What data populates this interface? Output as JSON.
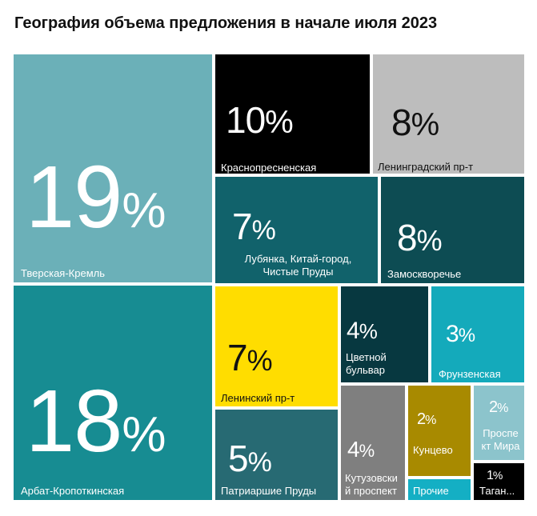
{
  "title": "География объема предложения в начале июля 2023",
  "chart_data": {
    "type": "treemap",
    "title": "География объема предложения в начале июля 2023",
    "unit": "%",
    "items": [
      {
        "name": "Тверская-Кремль",
        "value": 19,
        "color": "#6BB0B8"
      },
      {
        "name": "Арбат-Кропоткинская",
        "value": 18,
        "color": "#178C92"
      },
      {
        "name": "Краснопресненская",
        "value": 10,
        "color": "#000000"
      },
      {
        "name": "Ленинградский пр-т",
        "value": 8,
        "color": "#BDBDBD"
      },
      {
        "name": "Лубянка, Китай-город,\nЧистые Пруды",
        "value": 7,
        "color": "#11626B"
      },
      {
        "name": "Замоскворечье",
        "value": 8,
        "color": "#0D4C53"
      },
      {
        "name": "Ленинский пр-т",
        "value": 7,
        "color": "#FFDD00"
      },
      {
        "name": "Цветной\nбульвар",
        "value": 4,
        "color": "#073840"
      },
      {
        "name": "Фрунзенская",
        "value": 3,
        "color": "#14AABB"
      },
      {
        "name": "Патриаршие Пруды",
        "value": 5,
        "color": "#276A73"
      },
      {
        "name": "Кутузовски\nй проспект",
        "value": 4,
        "color": "#7F7F7F"
      },
      {
        "name": "Кунцево",
        "value": 2,
        "color": "#A88A00"
      },
      {
        "name": "Проспе\nкт Мира",
        "value": 2,
        "color": "#8CC4CC"
      },
      {
        "name": "Прочие",
        "value": null,
        "color": "#14AFC4"
      },
      {
        "name": "Таган...",
        "value": 1,
        "color": "#000000"
      }
    ]
  }
}
